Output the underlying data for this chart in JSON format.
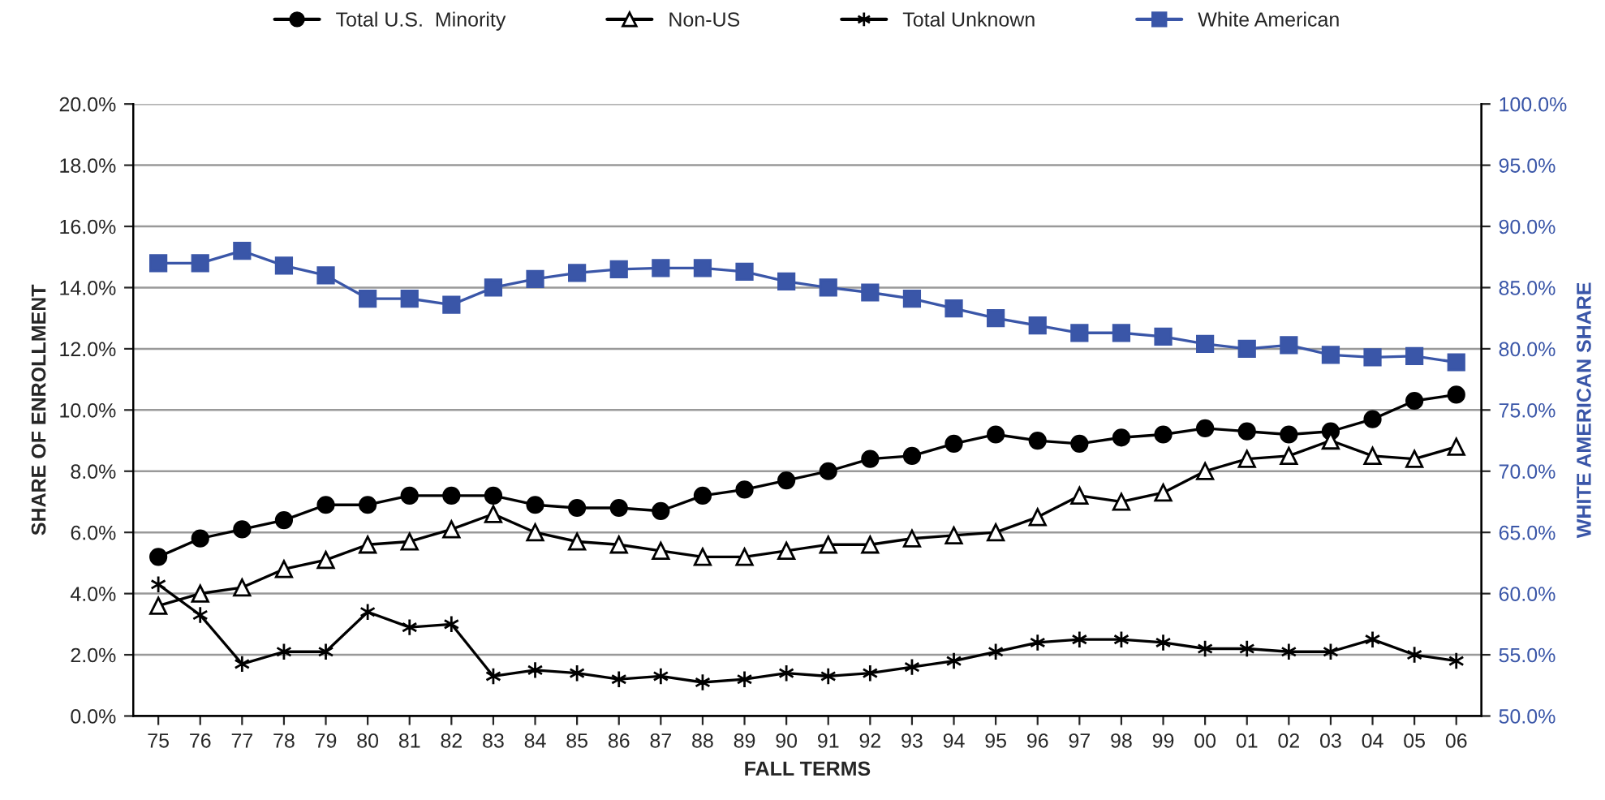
{
  "chart_data": {
    "type": "line",
    "xlabel": "FALL TERMS",
    "ylabel": "SHARE OF ENROLLMENT",
    "y2label": "WHITE AMERICAN SHARE",
    "categories": [
      "75",
      "76",
      "77",
      "78",
      "79",
      "80",
      "81",
      "82",
      "83",
      "84",
      "85",
      "86",
      "87",
      "88",
      "89",
      "90",
      "91",
      "92",
      "93",
      "94",
      "95",
      "96",
      "97",
      "98",
      "99",
      "00",
      "01",
      "02",
      "03",
      "04",
      "05",
      "06"
    ],
    "series": [
      {
        "name": "Total U.S.  Minority",
        "color": "#000000",
        "marker": "circle",
        "values": [
          5.2,
          5.8,
          6.1,
          6.4,
          6.9,
          6.9,
          7.2,
          7.2,
          7.2,
          6.9,
          6.8,
          6.8,
          6.7,
          7.2,
          7.4,
          7.7,
          8.0,
          8.4,
          8.5,
          8.9,
          9.2,
          9.0,
          8.9,
          9.1,
          9.2,
          9.4,
          9.3,
          9.2,
          9.3,
          9.7,
          10.3,
          10.5
        ]
      },
      {
        "name": "Non-US",
        "color": "#000000",
        "marker": "triangle",
        "values": [
          3.6,
          4.0,
          4.2,
          4.8,
          5.1,
          5.6,
          5.7,
          6.1,
          6.6,
          6.0,
          5.7,
          5.6,
          5.4,
          5.2,
          5.2,
          5.4,
          5.6,
          5.6,
          5.8,
          5.9,
          6.0,
          6.5,
          7.2,
          7.0,
          7.3,
          8.0,
          8.4,
          8.5,
          9.0,
          8.5,
          8.4,
          8.8
        ]
      },
      {
        "name": "Total Unknown",
        "color": "#000000",
        "marker": "cross",
        "values": [
          4.3,
          3.3,
          1.7,
          2.1,
          2.1,
          3.4,
          2.9,
          3.0,
          1.3,
          1.5,
          1.4,
          1.2,
          1.3,
          1.1,
          1.2,
          1.4,
          1.3,
          1.4,
          1.6,
          1.8,
          2.1,
          2.4,
          2.5,
          2.5,
          2.4,
          2.2,
          2.2,
          2.1,
          2.1,
          2.5,
          2.0,
          1.8
        ]
      },
      {
        "name": "White American",
        "color": "#3a56a8",
        "marker": "square",
        "axis": "y2",
        "values": [
          87.0,
          87.0,
          88.0,
          86.8,
          86.0,
          84.1,
          84.1,
          83.6,
          85.0,
          85.7,
          86.2,
          86.5,
          86.6,
          86.6,
          86.3,
          85.5,
          85.0,
          84.6,
          84.1,
          83.3,
          82.5,
          81.9,
          81.3,
          81.3,
          81.0,
          80.4,
          80.0,
          80.3,
          79.5,
          79.3,
          79.4,
          78.9
        ]
      }
    ],
    "ylim": [
      0,
      20
    ],
    "yticks": [
      {
        "value": 0,
        "label": "0.0%"
      },
      {
        "value": 2,
        "label": "2.0%"
      },
      {
        "value": 4,
        "label": "4.0%"
      },
      {
        "value": 6,
        "label": "6.0%"
      },
      {
        "value": 8,
        "label": "8.0%"
      },
      {
        "value": 10,
        "label": "10.0%"
      },
      {
        "value": 12,
        "label": "12.0%"
      },
      {
        "value": 14,
        "label": "14.0%"
      },
      {
        "value": 16,
        "label": "16.0%"
      },
      {
        "value": 18,
        "label": "18.0%"
      },
      {
        "value": 20,
        "label": "20.0%"
      }
    ],
    "y2lim": [
      50,
      100
    ],
    "y2ticks": [
      {
        "value": 50,
        "label": "50.0%"
      },
      {
        "value": 55,
        "label": "55.0%"
      },
      {
        "value": 60,
        "label": "60.0%"
      },
      {
        "value": 65,
        "label": "65.0%"
      },
      {
        "value": 70,
        "label": "70.0%"
      },
      {
        "value": 75,
        "label": "75.0%"
      },
      {
        "value": 80,
        "label": "80.0%"
      },
      {
        "value": 85,
        "label": "85.0%"
      },
      {
        "value": 90,
        "label": "90.0%"
      },
      {
        "value": 95,
        "label": "95.0%"
      },
      {
        "value": 100,
        "label": "100.0%"
      }
    ],
    "grid": "y",
    "legend": "top",
    "line_style": "solid"
  }
}
